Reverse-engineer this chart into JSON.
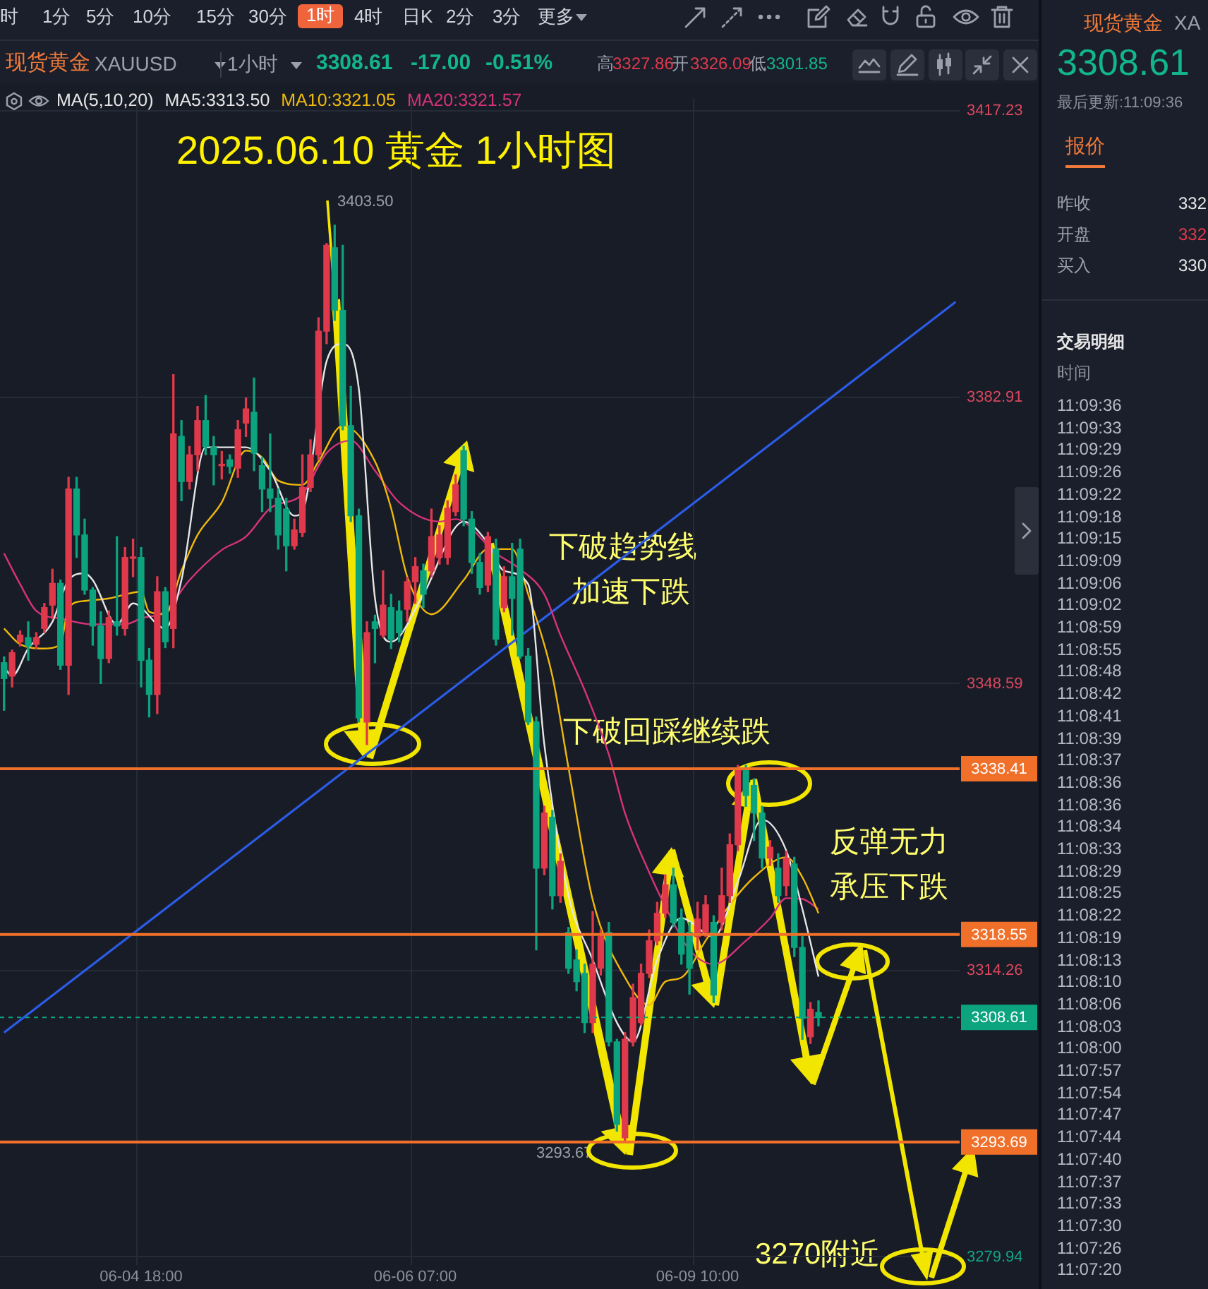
{
  "chart_data": {
    "type": "candlestick",
    "title": "2025.06.10 黄金 1小时图",
    "legend_title": "MA(5,10,20)",
    "legend": "top",
    "grid": true,
    "marker": "none",
    "categories": [
      null,
      null,
      null,
      null,
      null,
      null,
      null,
      null,
      null,
      null,
      null,
      null,
      null,
      null,
      null,
      null,
      null,
      "06-04 18:00",
      null,
      null,
      null,
      null,
      null,
      null,
      null,
      null,
      null,
      null,
      null,
      null,
      null,
      null,
      null,
      null,
      null,
      null,
      null,
      null,
      null,
      null,
      null,
      null,
      null,
      null,
      null,
      null,
      null,
      null,
      null,
      null,
      null,
      "06-06 07:00",
      null,
      null,
      null,
      null,
      null,
      null,
      null,
      null,
      null,
      null,
      null,
      null,
      null,
      null,
      null,
      null,
      null,
      null,
      null,
      null,
      null,
      null,
      null,
      null,
      null,
      null,
      null,
      null,
      null,
      null,
      null,
      null,
      null,
      null,
      "06-09 10:00",
      null,
      null,
      null,
      null,
      null,
      null,
      null,
      null,
      null,
      null,
      null,
      null,
      null,
      null,
      null,
      null,
      null,
      null,
      null,
      null,
      null,
      null,
      null,
      null,
      null,
      null,
      null,
      null,
      null,
      null,
      null,
      null
    ],
    "ohlc": [
      [
        3351.1,
        3351.8,
        3345.4,
        3349.2
      ],
      [
        3349.5,
        3352.6,
        3348.2,
        3352.3
      ],
      [
        3353.6,
        3354.9,
        3353.1,
        3354.4
      ],
      [
        3354.1,
        3356.0,
        3351.4,
        3353.1
      ],
      [
        3353.3,
        3354.7,
        3352.8,
        3354.1
      ],
      [
        3355.2,
        3358.2,
        3354.7,
        3357.7
      ],
      [
        3358.0,
        3362.3,
        3356.4,
        3360.6
      ],
      [
        3360.6,
        3361.0,
        3350.3,
        3350.8
      ],
      [
        3350.8,
        3373.3,
        3347.3,
        3371.9
      ],
      [
        3371.9,
        3373.3,
        3363.7,
        3366.4
      ],
      [
        3366.4,
        3368.3,
        3359.3,
        3359.8
      ],
      [
        3359.8,
        3360.1,
        3353.2,
        3355.5
      ],
      [
        3355.5,
        3357.2,
        3348.6,
        3351.6
      ],
      [
        3351.6,
        3357.3,
        3351.1,
        3356.5
      ],
      [
        3356.0,
        3366.2,
        3354.4,
        3355.5
      ],
      [
        3355.2,
        3364.9,
        3354.4,
        3363.7
      ],
      [
        3363.6,
        3365.9,
        3361.4,
        3363.7
      ],
      [
        3363.7,
        3364.9,
        3348.2,
        3351.4
      ],
      [
        3351.4,
        3352.8,
        3344.6,
        3347.3
      ],
      [
        3347.3,
        3361.4,
        3345.0,
        3359.6
      ],
      [
        3359.6,
        3360.1,
        3352.9,
        3353.6
      ],
      [
        3355.2,
        3385.6,
        3352.9,
        3378.5
      ],
      [
        3378.2,
        3380.1,
        3370.5,
        3372.8
      ],
      [
        3372.8,
        3377.0,
        3371.9,
        3376.0
      ],
      [
        3376.0,
        3381.8,
        3374.1,
        3380.1
      ],
      [
        3380.1,
        3383.1,
        3376.0,
        3377.0
      ],
      [
        3376.9,
        3378.2,
        3372.4,
        3376.0
      ],
      [
        3374.7,
        3376.4,
        3373.1,
        3374.8
      ],
      [
        3375.4,
        3376.0,
        3373.8,
        3374.6
      ],
      [
        3374.4,
        3380.1,
        3373.3,
        3379.0
      ],
      [
        3379.8,
        3382.8,
        3378.2,
        3381.5
      ],
      [
        3381.1,
        3385.2,
        3374.1,
        3376.2
      ],
      [
        3374.7,
        3375.7,
        3369.2,
        3371.9
      ],
      [
        3371.9,
        3378.5,
        3369.2,
        3370.8
      ],
      [
        3370.8,
        3371.9,
        3364.7,
        3366.4
      ],
      [
        3369.5,
        3370.8,
        3362.1,
        3365.1
      ],
      [
        3365.1,
        3368.3,
        3364.7,
        3367.0
      ],
      [
        3366.7,
        3376.0,
        3366.2,
        3372.1
      ],
      [
        3372.1,
        3377.8,
        3371.6,
        3376.0
      ],
      [
        3376.0,
        3392.4,
        3375.4,
        3390.8
      ],
      [
        3390.8,
        3401.3,
        3389.3,
        3401.1
      ],
      [
        3400.8,
        3403.5,
        3392.1,
        3393.3
      ],
      [
        3393.3,
        3401.1,
        3379.0,
        3379.5
      ],
      [
        3379.5,
        3384.2,
        3368.0,
        3368.7
      ],
      [
        3368.7,
        3369.5,
        3344.0,
        3344.5
      ],
      [
        3344.0,
        3356.0,
        3341.3,
        3354.7
      ],
      [
        3356.0,
        3356.8,
        3351.1,
        3355.2
      ],
      [
        3354.4,
        3362.1,
        3354.1,
        3358.0
      ],
      [
        3357.7,
        3359.3,
        3352.8,
        3353.9
      ],
      [
        3357.3,
        3358.5,
        3353.6,
        3354.7
      ],
      [
        3357.5,
        3361.3,
        3356.0,
        3360.8
      ],
      [
        3360.8,
        3363.7,
        3358.2,
        3362.6
      ],
      [
        3362.1,
        3362.9,
        3357.7,
        3359.3
      ],
      [
        3362.1,
        3369.5,
        3361.4,
        3366.2
      ],
      [
        3363.7,
        3367.5,
        3362.9,
        3366.4
      ],
      [
        3363.7,
        3370.5,
        3362.9,
        3369.6
      ],
      [
        3369.2,
        3373.6,
        3368.7,
        3372.4
      ],
      [
        3376.5,
        3377.0,
        3367.5,
        3368.3
      ],
      [
        3368.3,
        3369.2,
        3361.8,
        3363.1
      ],
      [
        3363.1,
        3364.2,
        3359.3,
        3360.1
      ],
      [
        3360.4,
        3366.7,
        3359.6,
        3366.2
      ],
      [
        3364.7,
        3365.9,
        3353.2,
        3353.9
      ],
      [
        3357.7,
        3362.6,
        3357.2,
        3361.4
      ],
      [
        3361.4,
        3365.4,
        3354.4,
        3358.8
      ],
      [
        3364.7,
        3365.9,
        3351.6,
        3351.9
      ],
      [
        3351.9,
        3352.8,
        3343.7,
        3344.0
      ],
      [
        3344.0,
        3344.6,
        3316.7,
        3326.5
      ],
      [
        3326.5,
        3333.9,
        3325.7,
        3333.1
      ],
      [
        3332.6,
        3333.4,
        3321.6,
        3323.2
      ],
      [
        3323.2,
        3328.2,
        3322.4,
        3327.3
      ],
      [
        3318.8,
        3319.4,
        3313.9,
        3314.5
      ],
      [
        3315.5,
        3316.7,
        3311.8,
        3312.9
      ],
      [
        3313.9,
        3315.0,
        3306.8,
        3308.0
      ],
      [
        3308.0,
        3321.3,
        3306.8,
        3315.0
      ],
      [
        3314.5,
        3319.1,
        3313.7,
        3318.3
      ],
      [
        3318.8,
        3320.0,
        3305.2,
        3305.7
      ],
      [
        3305.7,
        3306.0,
        3295.0,
        3295.8
      ],
      [
        3294.2,
        3306.8,
        3293.67,
        3306.0
      ],
      [
        3305.7,
        3312.6,
        3305.2,
        3311.0
      ],
      [
        3308.0,
        3315.0,
        3307.7,
        3313.9
      ],
      [
        3313.9,
        3319.1,
        3313.4,
        3317.8
      ],
      [
        3317.8,
        3322.4,
        3317.3,
        3321.1
      ],
      [
        3321.1,
        3325.7,
        3320.6,
        3324.5
      ],
      [
        3324.5,
        3326.5,
        3319.5,
        3320.0
      ],
      [
        3320.4,
        3321.6,
        3315.0,
        3316.2
      ],
      [
        3318.8,
        3320.0,
        3311.4,
        3314.5
      ],
      [
        3318.3,
        3322.4,
        3316.7,
        3320.4
      ],
      [
        3318.8,
        3323.2,
        3318.3,
        3322.1
      ],
      [
        3320.0,
        3320.8,
        3310.4,
        3311.3
      ],
      [
        3320.0,
        3326.5,
        3319.1,
        3323.2
      ],
      [
        3323.2,
        3330.6,
        3322.4,
        3329.3
      ],
      [
        3329.3,
        3338.8,
        3328.6,
        3338.3
      ],
      [
        3338.3,
        3338.8,
        3333.9,
        3335.2
      ],
      [
        3336.4,
        3337.2,
        3329.8,
        3333.1
      ],
      [
        3333.1,
        3333.9,
        3326.5,
        3327.7
      ],
      [
        3327.7,
        3329.8,
        3326.8,
        3329.0
      ],
      [
        3326.5,
        3328.2,
        3322.4,
        3323.2
      ],
      [
        3324.4,
        3328.5,
        3323.2,
        3327.7
      ],
      [
        3327.0,
        3327.8,
        3315.9,
        3317.0
      ],
      [
        3317.0,
        3318.3,
        3306.0,
        3308.5
      ],
      [
        3306.3,
        3310.4,
        3305.5,
        3309.6
      ],
      [
        3309.2,
        3310.6,
        3307.6,
        3308.61
      ],
      null,
      null,
      null,
      null,
      null,
      null,
      null,
      null,
      null,
      null,
      null,
      null,
      null,
      null,
      null,
      null,
      null
    ],
    "colors": [
      "#0ca37f",
      "#e0394b",
      "#e0394b",
      "#0ca37f",
      "#e0394b",
      "#e0394b",
      "#e0394b",
      "#0ca37f",
      "#e0394b",
      "#0ca37f",
      "#0ca37f",
      "#0ca37f",
      "#0ca37f",
      "#e0394b",
      "#0ca37f",
      "#e0394b",
      "#e0394b",
      "#0ca37f",
      "#0ca37f",
      "#e0394b",
      "#0ca37f",
      "#e0394b",
      "#0ca37f",
      "#e0394b",
      "#e0394b",
      "#0ca37f",
      "#0ca37f",
      "#e0394b",
      "#0ca37f",
      "#e0394b",
      "#e0394b",
      "#0ca37f",
      "#0ca37f",
      "#0ca37f",
      "#0ca37f",
      "#0ca37f",
      "#e0394b",
      "#e0394b",
      "#e0394b",
      "#e0394b",
      "#e0394b",
      "#0ca37f",
      "#0ca37f",
      "#0ca37f",
      "#0ca37f",
      "#e0394b",
      "#0ca37f",
      "#e0394b",
      "#0ca37f",
      "#0ca37f",
      "#e0394b",
      "#e0394b",
      "#0ca37f",
      "#e0394b",
      "#e0394b",
      "#e0394b",
      "#e0394b",
      "#0ca37f",
      "#0ca37f",
      "#0ca37f",
      "#e0394b",
      "#0ca37f",
      "#e0394b",
      "#0ca37f",
      "#0ca37f",
      "#0ca37f",
      "#0ca37f",
      "#e0394b",
      "#0ca37f",
      "#e0394b",
      "#0ca37f",
      "#0ca37f",
      "#0ca37f",
      "#e0394b",
      "#e0394b",
      "#0ca37f",
      "#0ca37f",
      "#e0394b",
      "#e0394b",
      "#e0394b",
      "#e0394b",
      "#e0394b",
      "#e0394b",
      "#0ca37f",
      "#0ca37f",
      "#0ca37f",
      "#e0394b",
      "#e0394b",
      "#0ca37f",
      "#e0394b",
      "#e0394b",
      "#e0394b",
      "#0ca37f",
      "#0ca37f",
      "#0ca37f",
      "#e0394b",
      "#0ca37f",
      "#e0394b",
      "#0ca37f",
      "#0ca37f",
      "#e0394b",
      "#0ca37f",
      null,
      null,
      null,
      null,
      null,
      null,
      null,
      null,
      null,
      null,
      null,
      null,
      null,
      null,
      null,
      null,
      null
    ],
    "series": [
      {
        "type": "line",
        "name": "MA5:3313.50",
        "color": "#e6e6e6",
        "values": [
          3350.6,
          3349.5,
          null,
          3352.8,
          null,
          null,
          3356.0,
          null,
          3361.0,
          null,
          3361.8,
          3361.0,
          null,
          null,
          3355.7,
          null,
          3358.2,
          null,
          null,
          null,
          3355.2,
          null,
          3361.0,
          null,
          null,
          3376.9,
          null,
          null,
          null,
          null,
          3376.9,
          null,
          null,
          3374.1,
          null,
          null,
          3368.7,
          3369.2,
          null,
          null,
          3387.2,
          null,
          3389.3,
          null,
          3383.9,
          null,
          3358.8,
          null,
          3353.6,
          null,
          null,
          null,
          3359.3,
          null,
          null,
          null,
          null,
          3368.0,
          null,
          null,
          3365.4,
          null,
          3362.1,
          null,
          null,
          3360.5,
          null,
          3341.3,
          null,
          null,
          3323.2,
          null,
          null,
          3315.5,
          null,
          null,
          3308.0,
          null,
          3305.7,
          null,
          null,
          3315.5,
          null,
          null,
          3320.5,
          null,
          null,
          null,
          3318.3,
          null,
          null,
          3324.9,
          null,
          null,
          3332.3,
          null,
          null,
          3328.6,
          null,
          3321.6,
          null,
          3313.5,
          null,
          null,
          null,
          null,
          null,
          null,
          null,
          null,
          null,
          null,
          null,
          null,
          null,
          null,
          null,
          null,
          null
        ]
      },
      {
        "type": "line",
        "name": "MA10:3321.05",
        "color": "#f0b90b",
        "values": [
          3355.2,
          null,
          3353.3,
          null,
          null,
          3352.8,
          null,
          3353.3,
          3357.7,
          null,
          3358.5,
          null,
          null,
          3358.8,
          null,
          null,
          null,
          3359.6,
          3357.2,
          null,
          3356.9,
          null,
          3362.1,
          null,
          3366.4,
          null,
          null,
          3370.3,
          null,
          null,
          3376.5,
          null,
          3375.7,
          null,
          3372.9,
          null,
          null,
          3372.4,
          null,
          3375.2,
          null,
          null,
          3379.5,
          null,
          null,
          null,
          3375.2,
          null,
          3369.6,
          null,
          3361.4,
          null,
          null,
          3356.9,
          null,
          null,
          null,
          3361.0,
          null,
          null,
          3364.7,
          null,
          null,
          3364.7,
          null,
          3359.3,
          null,
          null,
          3349.5,
          null,
          3338.5,
          null,
          null,
          3322.7,
          null,
          null,
          null,
          3313.4,
          null,
          null,
          3310.1,
          null,
          3312.9,
          null,
          3313.4,
          null,
          null,
          3317.8,
          null,
          null,
          3322.1,
          null,
          null,
          3325.4,
          null,
          null,
          null,
          3327.8,
          null,
          3325.4,
          null,
          3321.1,
          null,
          null,
          null,
          null,
          null,
          null,
          null,
          null,
          null,
          null,
          null,
          null,
          null,
          null,
          null,
          null,
          null
        ]
      },
      {
        "type": "line",
        "name": "MA20:3321.57",
        "color": "#d6337a",
        "values": [
          3364.2,
          null,
          3360.5,
          null,
          3357.3,
          null,
          null,
          3356.4,
          null,
          null,
          null,
          3355.7,
          null,
          null,
          null,
          3355.7,
          null,
          3356.4,
          null,
          null,
          3357.3,
          null,
          null,
          3361.0,
          null,
          null,
          null,
          3364.6,
          null,
          null,
          3366.2,
          null,
          null,
          3369.6,
          null,
          null,
          null,
          3371.3,
          null,
          null,
          3376.2,
          null,
          null,
          3377.7,
          null,
          null,
          3374.1,
          null,
          null,
          3370.3,
          null,
          null,
          null,
          null,
          3368.0,
          null,
          3368.3,
          null,
          null,
          null,
          null,
          3364.2,
          null,
          null,
          3362.3,
          null,
          null,
          3359.3,
          null,
          3354.4,
          null,
          null,
          3347.8,
          null,
          null,
          3340.1,
          null,
          3333.1,
          null,
          null,
          3326.0,
          null,
          null,
          3320.0,
          null,
          3316.7,
          null,
          null,
          3315.0,
          null,
          null,
          null,
          3317.8,
          null,
          null,
          3320.5,
          null,
          3322.9,
          null,
          3322.8,
          null,
          3321.6,
          null,
          null,
          null,
          null,
          null,
          null,
          null,
          null,
          null,
          null,
          null,
          null,
          null,
          null,
          null,
          null,
          null
        ]
      },
      {
        "type": "line",
        "color": "#2b5ce6",
        "values": [
          3306.8,
          null,
          null,
          null,
          null,
          null,
          null,
          null,
          null,
          null,
          null,
          null,
          null,
          null,
          null,
          null,
          null,
          null,
          null,
          null,
          null,
          null,
          null,
          null,
          null,
          null,
          null,
          null,
          null,
          null,
          null,
          null,
          null,
          null,
          null,
          null,
          null,
          null,
          null,
          null,
          null,
          null,
          null,
          null,
          null,
          null,
          null,
          null,
          null,
          null,
          null,
          null,
          null,
          null,
          null,
          null,
          null,
          null,
          null,
          null,
          null,
          null,
          null,
          null,
          null,
          null,
          null,
          null,
          null,
          null,
          null,
          null,
          null,
          null,
          null,
          null,
          null,
          null,
          null,
          null,
          null,
          null,
          null,
          null,
          null,
          null,
          null,
          null,
          null,
          null,
          null,
          null,
          null,
          null,
          null,
          null,
          null,
          null,
          null,
          null,
          null,
          null,
          null,
          null,
          null,
          null,
          null,
          null,
          null,
          null,
          null,
          null,
          null,
          null,
          null,
          null,
          null,
          null,
          3394.3
        ]
      }
    ],
    "ylim": [
      3279.0,
      3418.7
    ],
    "yticks": [
      3417.23,
      3382.91,
      3348.59,
      3314.26,
      3279.94
    ],
    "ref_lines": [
      {
        "axis": "y",
        "value": 3338.41,
        "label": "3338.41",
        "color": "#f0702a"
      },
      {
        "axis": "y",
        "value": 3318.55,
        "label": "3318.55",
        "color": "#f0702a"
      },
      {
        "axis": "y",
        "value": 3293.69,
        "label": "3293.69",
        "color": "#f0702a"
      },
      {
        "axis": "y",
        "value": 3308.61,
        "label": "3308.61",
        "color": "#0ca37f",
        "line_style": "dashed"
      }
    ],
    "annotations": [
      "3403.50",
      "3293.67",
      "下破趋势线",
      "加速下跌",
      "下破回踩继续跌",
      "反弹无力",
      "承压下跌",
      "3270附近",
      "时",
      "1分",
      "5分",
      "10分",
      "15分",
      "30分",
      "1时",
      "4时",
      "日K",
      "2分",
      "3分",
      "更多",
      "现货黄金",
      "XAUUSD",
      "1小时",
      "3308.61",
      "-17.00",
      "-0.51%",
      "高",
      "3327.86",
      "开",
      "3326.09",
      "低",
      "3301.85",
      "现货黄金",
      "XA",
      "3308.61",
      "最后更新:11:09:36",
      "报价",
      "昨收",
      "332",
      "开盘",
      "332",
      "买入",
      "330",
      "交易明细",
      "时间",
      "11:09:36",
      "11:09:33",
      "11:09:29",
      "11:09:26",
      "11:09:22",
      "11:09:18",
      "11:09:15",
      "11:09:09",
      "11:09:06",
      "11:09:02",
      "11:08:59",
      "11:08:55",
      "11:08:48",
      "11:08:42",
      "11:08:41",
      "11:08:39",
      "11:08:37",
      "11:08:36",
      "11:08:36",
      "11:08:34",
      "11:08:33",
      "11:08:29",
      "11:08:25",
      "11:08:22",
      "11:08:19",
      "11:08:13",
      "11:08:10",
      "11:08:06",
      "11:08:03",
      "11:08:00",
      "11:07:57",
      "11:07:54",
      "11:07:47",
      "11:07:44",
      "11:07:40",
      "11:07:37",
      "11:07:33",
      "11:07:30",
      "11:07:26",
      "11:07:20"
    ]
  }
}
